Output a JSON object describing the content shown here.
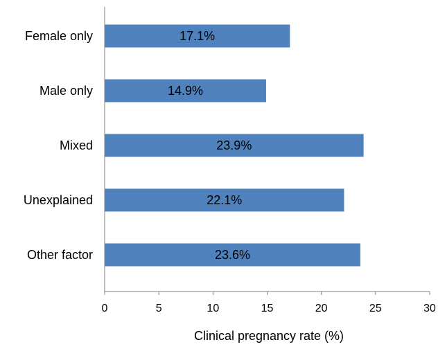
{
  "chart_data": {
    "type": "bar",
    "orientation": "horizontal",
    "categories": [
      "Female only",
      "Male only",
      "Mixed",
      "Unexplained",
      "Other factor"
    ],
    "values": [
      17.1,
      14.9,
      23.9,
      22.1,
      23.6
    ],
    "data_labels": [
      "17.1%",
      "14.9%",
      "23.9%",
      "22.1%",
      "23.6%"
    ],
    "xlabel": "Clinical pregnancy rate (%)",
    "xlim": [
      0,
      30
    ],
    "x_ticks": [
      0,
      5,
      10,
      15,
      20,
      25,
      30
    ],
    "grid": false,
    "bar_color": "#4f81bd"
  }
}
